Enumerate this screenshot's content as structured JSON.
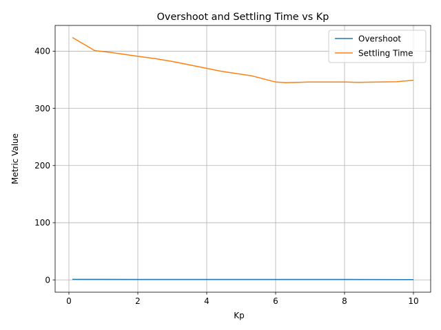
{
  "chart_data": {
    "type": "line",
    "title": "Overshoot and Settling Time vs Kp",
    "xlabel": "Kp",
    "ylabel": "Metric Value",
    "xlim": [
      -0.4,
      10.5
    ],
    "ylim": [
      -21.5,
      445
    ],
    "xticks": [
      0,
      2,
      4,
      6,
      8,
      10
    ],
    "yticks": [
      0,
      100,
      200,
      300,
      400
    ],
    "grid": true,
    "legend_position": "top-right",
    "series": [
      {
        "name": "Overshoot",
        "color": "#1f77b4",
        "x": [
          0.1,
          1,
          2,
          3,
          4,
          5,
          6,
          7,
          8,
          9,
          10
        ],
        "y": [
          0.9,
          0.9,
          0.8,
          0.8,
          0.8,
          0.8,
          0.8,
          0.7,
          0.7,
          0.6,
          0.5
        ]
      },
      {
        "name": "Settling Time",
        "color": "#ff7f0e",
        "x": [
          0.1,
          0.75,
          1.2,
          2.0,
          2.5,
          3.0,
          3.5,
          4.0,
          4.4,
          5.3,
          6.0,
          6.3,
          7.0,
          8.0,
          8.4,
          9.0,
          9.5,
          10.0
        ],
        "y": [
          424,
          401,
          398,
          391,
          387,
          382,
          376,
          370,
          365,
          357,
          346,
          345,
          346,
          346,
          345.5,
          346,
          346.5,
          349
        ]
      }
    ]
  }
}
